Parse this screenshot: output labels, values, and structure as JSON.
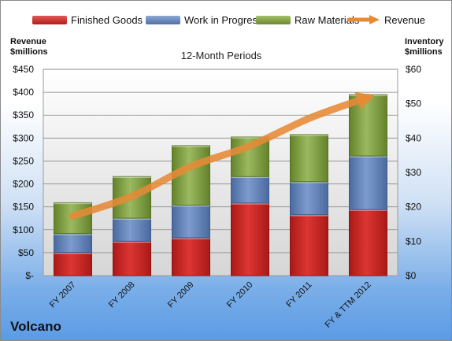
{
  "legend": {
    "finished_goods": "Finished Goods",
    "work_in_progress": "Work in Progress",
    "raw_materials": "Raw Materials",
    "revenue": "Revenue"
  },
  "left_axis_title": "Revenue\n$millions",
  "right_axis_title": "Inventory\n$millions",
  "subtitle": "12-Month Periods",
  "company": "Volcano",
  "colors": {
    "finished_goods": "#c4201e",
    "work_in_progress": "#5d7fb3",
    "raw_materials": "#77943a",
    "revenue": "#e68a36"
  },
  "chart_data": {
    "type": "bar",
    "stacked": true,
    "title": "12-Month Periods",
    "categories": [
      "FY 2007",
      "FY 2008",
      "FY 2009",
      "FY 2010",
      "FY 2011",
      "FY & TTM 2012"
    ],
    "left_axis": {
      "label": "Revenue $millions",
      "range": [
        0,
        450
      ],
      "ticks": [
        0,
        50,
        100,
        150,
        200,
        250,
        300,
        350,
        400,
        450
      ],
      "tick_labels": [
        "$-",
        "$50",
        "$100",
        "$150",
        "$200",
        "$250",
        "$300",
        "$350",
        "$400",
        "$450"
      ]
    },
    "right_axis": {
      "label": "Inventory $millions",
      "range": [
        0,
        60
      ],
      "ticks": [
        0,
        10,
        20,
        30,
        40,
        50,
        60
      ],
      "tick_labels": [
        "$0",
        "$10",
        "$20",
        "$30",
        "$40",
        "$50",
        "$60"
      ]
    },
    "series": [
      {
        "name": "Finished Goods",
        "axis": "right",
        "type": "bar",
        "values": [
          6.7,
          10.0,
          11.0,
          21.1,
          17.7,
          19.2
        ]
      },
      {
        "name": "Work in Progress",
        "axis": "right",
        "type": "bar",
        "values": [
          5.5,
          6.7,
          9.5,
          7.7,
          9.6,
          15.6
        ]
      },
      {
        "name": "Raw Materials",
        "axis": "right",
        "type": "bar",
        "values": [
          9.0,
          12.1,
          17.3,
          11.5,
          13.7,
          17.8
        ]
      },
      {
        "name": "Revenue",
        "axis": "left",
        "type": "line",
        "values": [
          130,
          173,
          238,
          283,
          343,
          389
        ]
      }
    ],
    "grid": true,
    "legend_position": "top"
  }
}
